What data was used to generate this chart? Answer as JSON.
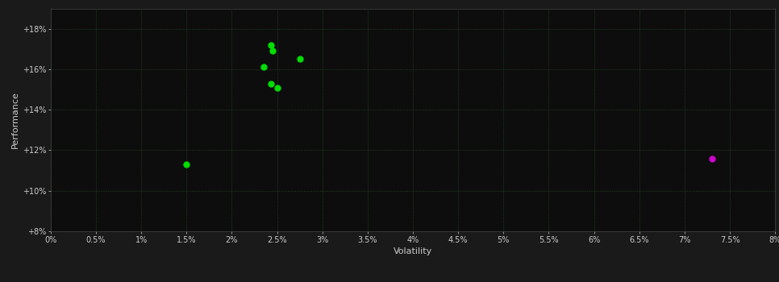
{
  "background_color": "#1a1a1a",
  "plot_bg_color": "#0d0d0d",
  "grid_color": "#2a4a2a",
  "text_color": "#cccccc",
  "xlabel": "Volatility",
  "ylabel": "Performance",
  "xlim": [
    0.0,
    0.08
  ],
  "ylim": [
    0.08,
    0.19
  ],
  "xticks": [
    0.0,
    0.005,
    0.01,
    0.015,
    0.02,
    0.025,
    0.03,
    0.035,
    0.04,
    0.045,
    0.05,
    0.055,
    0.06,
    0.065,
    0.07,
    0.075,
    0.08
  ],
  "yticks": [
    0.08,
    0.1,
    0.12,
    0.14,
    0.16,
    0.18
  ],
  "x_tick_labels": [
    "0%",
    "0.5%",
    "1%",
    "1.5%",
    "2%",
    "2.5%",
    "3%",
    "3.5%",
    "4%",
    "4.5%",
    "5%",
    "5.5%",
    "6%",
    "6.5%",
    "7%",
    "7.5%",
    "8%"
  ],
  "y_tick_labels": [
    "+8%",
    "+10%",
    "+12%",
    "+14%",
    "+16%",
    "+18%"
  ],
  "green_points": [
    [
      0.0243,
      0.172
    ],
    [
      0.0245,
      0.169
    ],
    [
      0.0275,
      0.165
    ],
    [
      0.0235,
      0.161
    ],
    [
      0.0243,
      0.153
    ],
    [
      0.025,
      0.151
    ],
    [
      0.015,
      0.113
    ]
  ],
  "magenta_points": [
    [
      0.073,
      0.116
    ]
  ],
  "point_color_green": "#00dd00",
  "point_color_magenta": "#cc00cc",
  "marker_size": 5,
  "tick_fontsize": 7,
  "label_fontsize": 8
}
